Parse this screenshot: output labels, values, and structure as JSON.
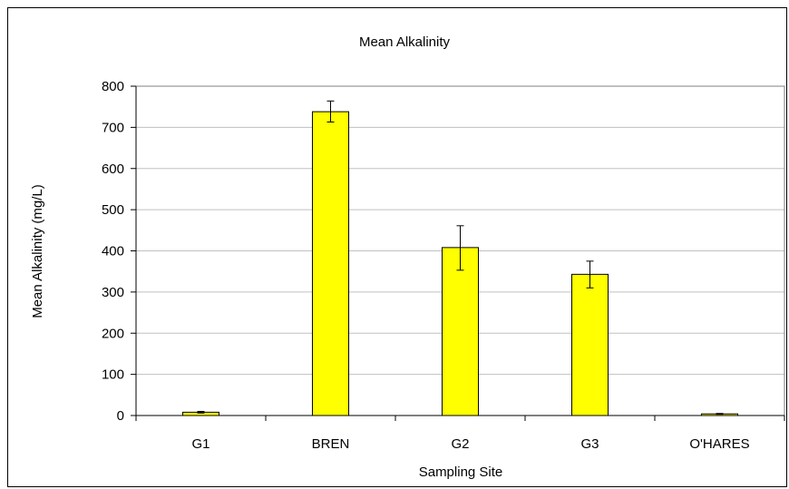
{
  "chart_data": {
    "type": "bar",
    "title": "Mean Alkalinity",
    "xlabel": "Sampling Site",
    "ylabel": "Mean Alkalinity (mg/L)",
    "categories": [
      "G1",
      "BREN",
      "G2",
      "G3",
      "O'HARES"
    ],
    "values": [
      8,
      738,
      408,
      343,
      4
    ],
    "error_low": [
      6,
      713,
      353,
      310,
      3
    ],
    "error_high": [
      10,
      764,
      461,
      375,
      5
    ],
    "ylim": [
      0,
      800
    ],
    "yticks": [
      0,
      100,
      200,
      300,
      400,
      500,
      600,
      700,
      800
    ],
    "grid": true,
    "legend": "none",
    "bar_color": "#FFFF00",
    "bar_edge_color": "#000000",
    "grid_color": "#C0C0C0"
  }
}
